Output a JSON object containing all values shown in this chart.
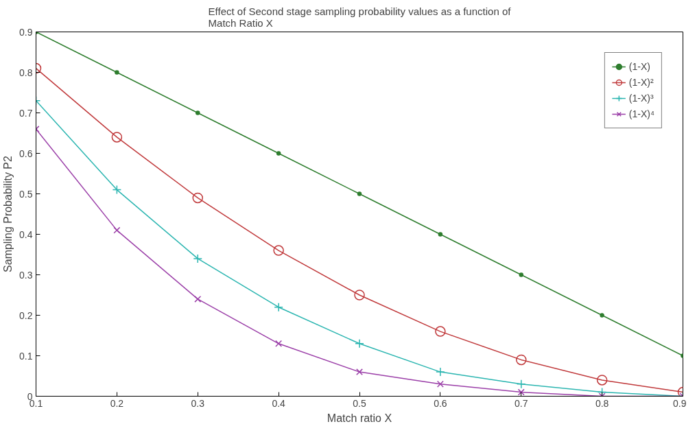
{
  "chart_data": {
    "type": "line",
    "title": "Effect of Second stage sampling probability values as a function of Match Ratio X",
    "xlabel": "Match ratio X",
    "ylabel": "Sampling Probability P2",
    "x": [
      0.1,
      0.2,
      0.3,
      0.4,
      0.5,
      0.6,
      0.7,
      0.8,
      0.9
    ],
    "series": [
      {
        "name": "(1-X)",
        "color": "#2e7d2e",
        "marker": "dot",
        "values": [
          0.9,
          0.8,
          0.7,
          0.6,
          0.5,
          0.4,
          0.3,
          0.2,
          0.1
        ]
      },
      {
        "name": "(1-X)²",
        "color": "#c0393b",
        "marker": "circle",
        "values": [
          0.81,
          0.64,
          0.49,
          0.36,
          0.25,
          0.16,
          0.09,
          0.04,
          0.01
        ]
      },
      {
        "name": "(1-X)³",
        "color": "#2ab5b0",
        "marker": "cross",
        "values": [
          0.73,
          0.51,
          0.34,
          0.22,
          0.13,
          0.06,
          0.03,
          0.01,
          0.0
        ]
      },
      {
        "name": "(1-X)⁴",
        "color": "#9b3fa8",
        "marker": "x",
        "values": [
          0.66,
          0.41,
          0.24,
          0.13,
          0.06,
          0.03,
          0.01,
          0.0,
          0.0
        ]
      }
    ],
    "xlim": [
      0.1,
      0.9
    ],
    "ylim": [
      0,
      0.9
    ],
    "xticks": [
      0.1,
      0.2,
      0.3,
      0.4,
      0.5,
      0.6,
      0.7,
      0.8,
      0.9
    ],
    "yticks": [
      0,
      0.1,
      0.2,
      0.3,
      0.4,
      0.5,
      0.6,
      0.7,
      0.8,
      0.9
    ],
    "grid": false,
    "legend": "top right"
  }
}
